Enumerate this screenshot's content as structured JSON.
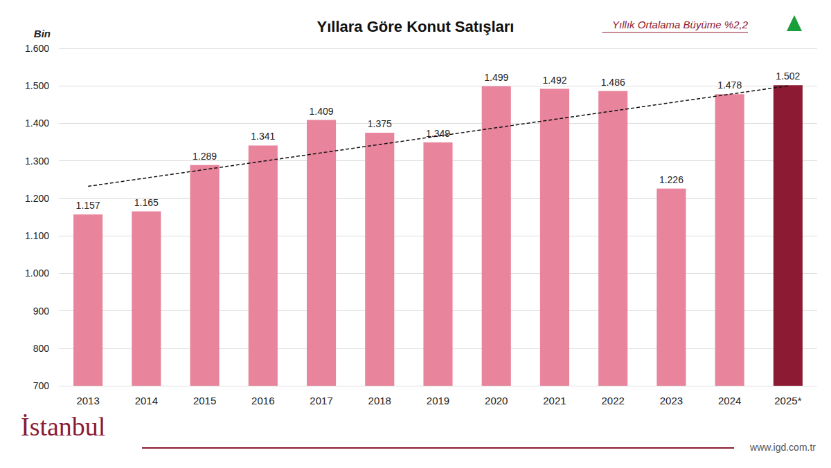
{
  "chart_data": {
    "type": "bar",
    "title": "Yıllara Göre Konut Satışları",
    "ylabel": "Bin",
    "annotation": "Yıllık Ortalama Büyüme %2,2",
    "footer": [
      "İstanbul",
      "www.igd.com.tr"
    ],
    "categories": [
      "2013",
      "2014",
      "2015",
      "2016",
      "2017",
      "2018",
      "2019",
      "2020",
      "2021",
      "2022",
      "2023",
      "2024",
      "2025*"
    ],
    "series": [
      {
        "type": "bar",
        "values": [
          1157,
          1165,
          1289,
          1341,
          1409,
          1375,
          1349,
          1499,
          1492,
          1486,
          1226,
          1478,
          1502
        ],
        "value_labels": [
          "1.157",
          "1.165",
          "1.289",
          "1.341",
          "1.409",
          "1.375",
          "1.349",
          "1.499",
          "1.492",
          "1.486",
          "1.226",
          "1.478",
          "1.502"
        ],
        "colors": [
          "#e8849c",
          "#e8849c",
          "#e8849c",
          "#e8849c",
          "#e8849c",
          "#e8849c",
          "#e8849c",
          "#e8849c",
          "#e8849c",
          "#e8849c",
          "#e8849c",
          "#e8849c",
          "#8b1a32"
        ],
        "data_labels": true
      },
      {
        "type": "line",
        "line_style": "dashed",
        "color": "#111111",
        "values": [
          1232,
          null,
          null,
          null,
          null,
          null,
          null,
          null,
          null,
          null,
          null,
          null,
          1500
        ]
      }
    ],
    "ylim": [
      700,
      1600
    ],
    "yticks": [
      700,
      800,
      900,
      {
        "value": 1000,
        "label": "1.000"
      },
      {
        "value": 1100,
        "label": "1.100"
      },
      {
        "value": 1200,
        "label": "1.200"
      },
      {
        "value": 1300,
        "label": "1.300"
      },
      {
        "value": 1400,
        "label": "1.400"
      },
      {
        "value": 1500,
        "label": "1.500"
      },
      {
        "value": 1600,
        "label": "1.600"
      }
    ],
    "grid": true
  }
}
